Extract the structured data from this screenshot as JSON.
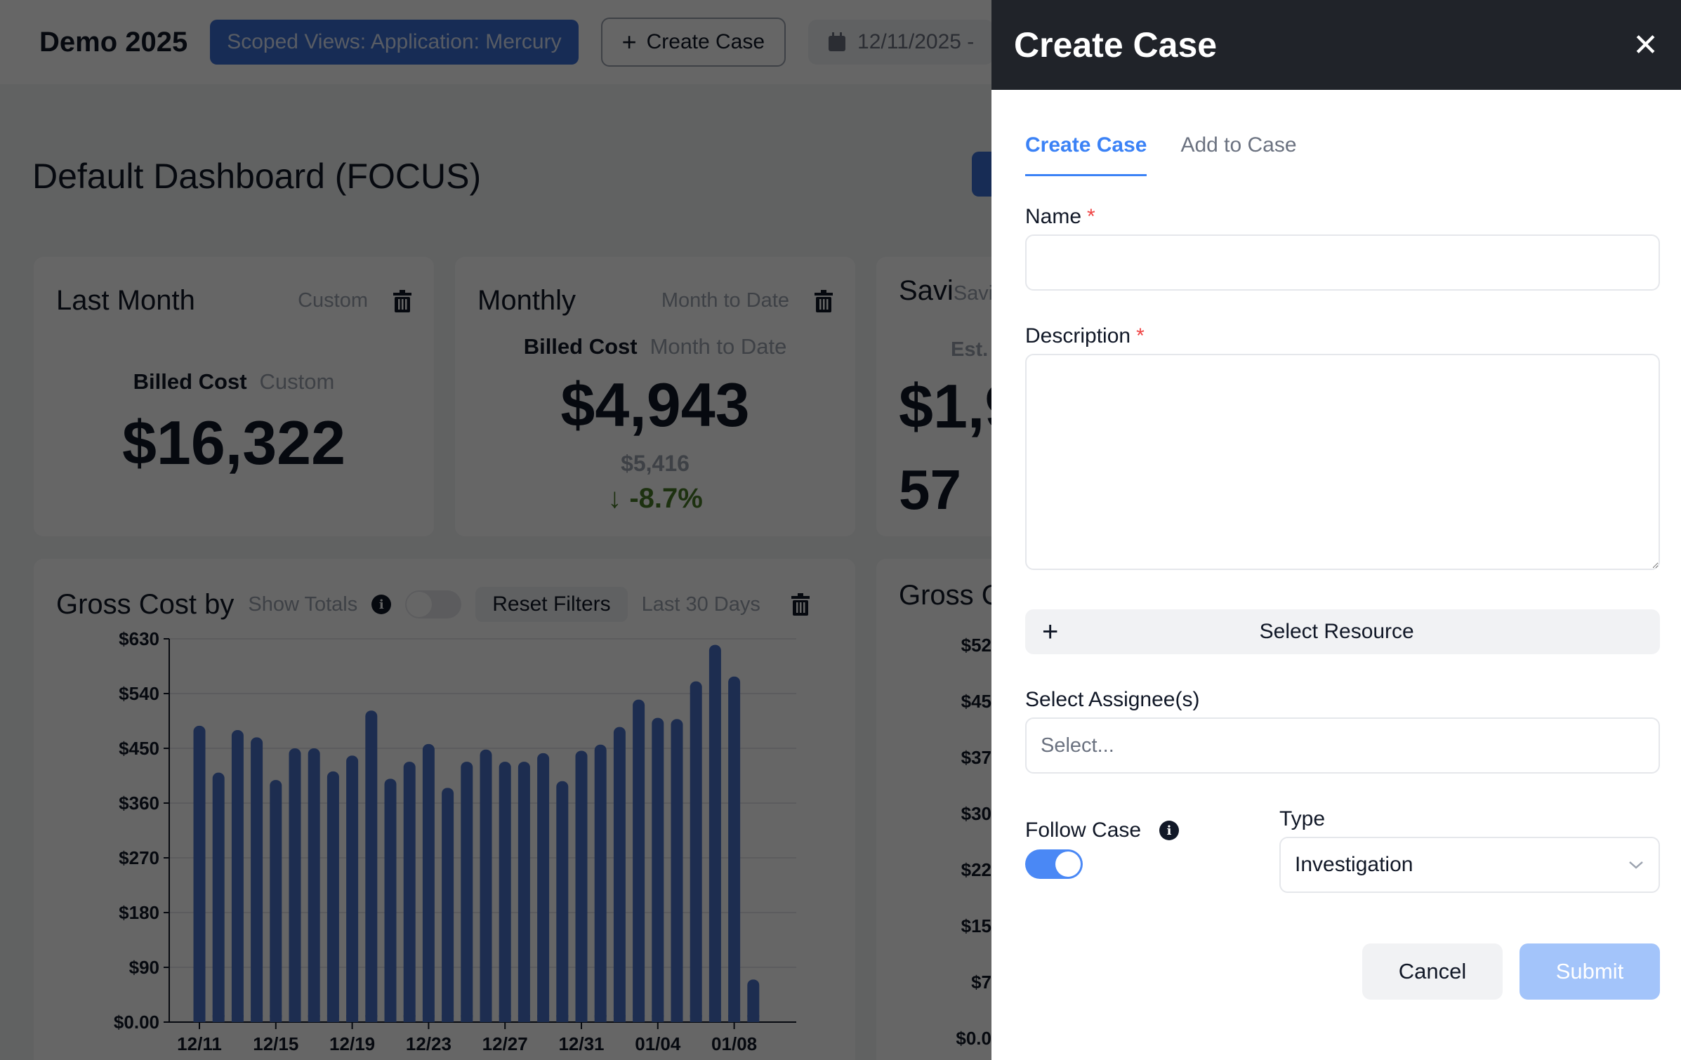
{
  "topbar": {
    "app_title": "Demo 2025",
    "scope_label": "Scoped Views: Application: Mercury",
    "create_case_label": "Create Case",
    "date_range_start": "12/11/2025 -"
  },
  "dashboard": {
    "title": "Default Dashboard (FOCUS)",
    "cards": [
      {
        "title": "Last Month",
        "subtitle": "Custom",
        "metric_label": "Billed Cost",
        "metric_period": "Custom",
        "value": "$16,322"
      },
      {
        "title": "Monthly",
        "subtitle": "Month to Date",
        "metric_label": "Billed Cost",
        "metric_period": "Month to Date",
        "value": "$4,943",
        "previous_value": "$5,416",
        "delta": "-8.7%",
        "delta_arrow": "↓"
      },
      {
        "title": "Savi",
        "subtitle": "Savi",
        "metric_label": "Est.",
        "value": "$1,9",
        "secondary_value": "57"
      }
    ],
    "chart_card": {
      "title": "Gross Cost by",
      "show_totals_label": "Show Totals",
      "reset_filters_label": "Reset Filters",
      "period_label": "Last 30 Days"
    },
    "chart_card_2": {
      "title": "Gross C",
      "y_ticks": [
        "$52",
        "$45",
        "$37",
        "$30",
        "$22",
        "$15",
        "$7",
        "$0.0"
      ]
    }
  },
  "chart_data": {
    "type": "bar",
    "title": "Gross Cost by",
    "xlabel": "",
    "ylabel": "",
    "ylim": [
      0,
      630
    ],
    "y_ticks": [
      "$0.00",
      "$90",
      "$180",
      "$270",
      "$360",
      "$450",
      "$540",
      "$630"
    ],
    "x_tick_labels": [
      "12/11",
      "12/15",
      "12/19",
      "12/23",
      "12/27",
      "12/31",
      "01/04",
      "01/08"
    ],
    "grid": true,
    "categories": [
      "12/11",
      "12/12",
      "12/13",
      "12/14",
      "12/15",
      "12/16",
      "12/17",
      "12/18",
      "12/19",
      "12/20",
      "12/21",
      "12/22",
      "12/23",
      "12/24",
      "12/25",
      "12/26",
      "12/27",
      "12/28",
      "12/29",
      "12/30",
      "12/31",
      "01/01",
      "01/02",
      "01/03",
      "01/04",
      "01/05",
      "01/06",
      "01/07",
      "01/08",
      "01/09"
    ],
    "values": [
      487,
      410,
      480,
      468,
      398,
      450,
      450,
      412,
      438,
      512,
      400,
      428,
      457,
      385,
      428,
      448,
      428,
      428,
      442,
      396,
      446,
      456,
      485,
      530,
      500,
      498,
      560,
      620,
      568,
      70
    ],
    "color": "#4a72c9"
  },
  "drawer": {
    "title": "Create Case",
    "close_label": "✕",
    "tabs": [
      {
        "label": "Create Case",
        "active": true
      },
      {
        "label": "Add to Case",
        "active": false
      }
    ],
    "name_label": "Name",
    "name_value": "",
    "description_label": "Description",
    "description_value": "",
    "required_marker": "*",
    "select_resource_label": "Select Resource",
    "assignee_label": "Select Assignee(s)",
    "assignee_placeholder": "Select...",
    "follow_case_label": "Follow Case",
    "follow_case_on": true,
    "type_label": "Type",
    "type_value": "Investigation",
    "cancel_label": "Cancel",
    "submit_label": "Submit",
    "accent_color": "#3b82f6"
  }
}
